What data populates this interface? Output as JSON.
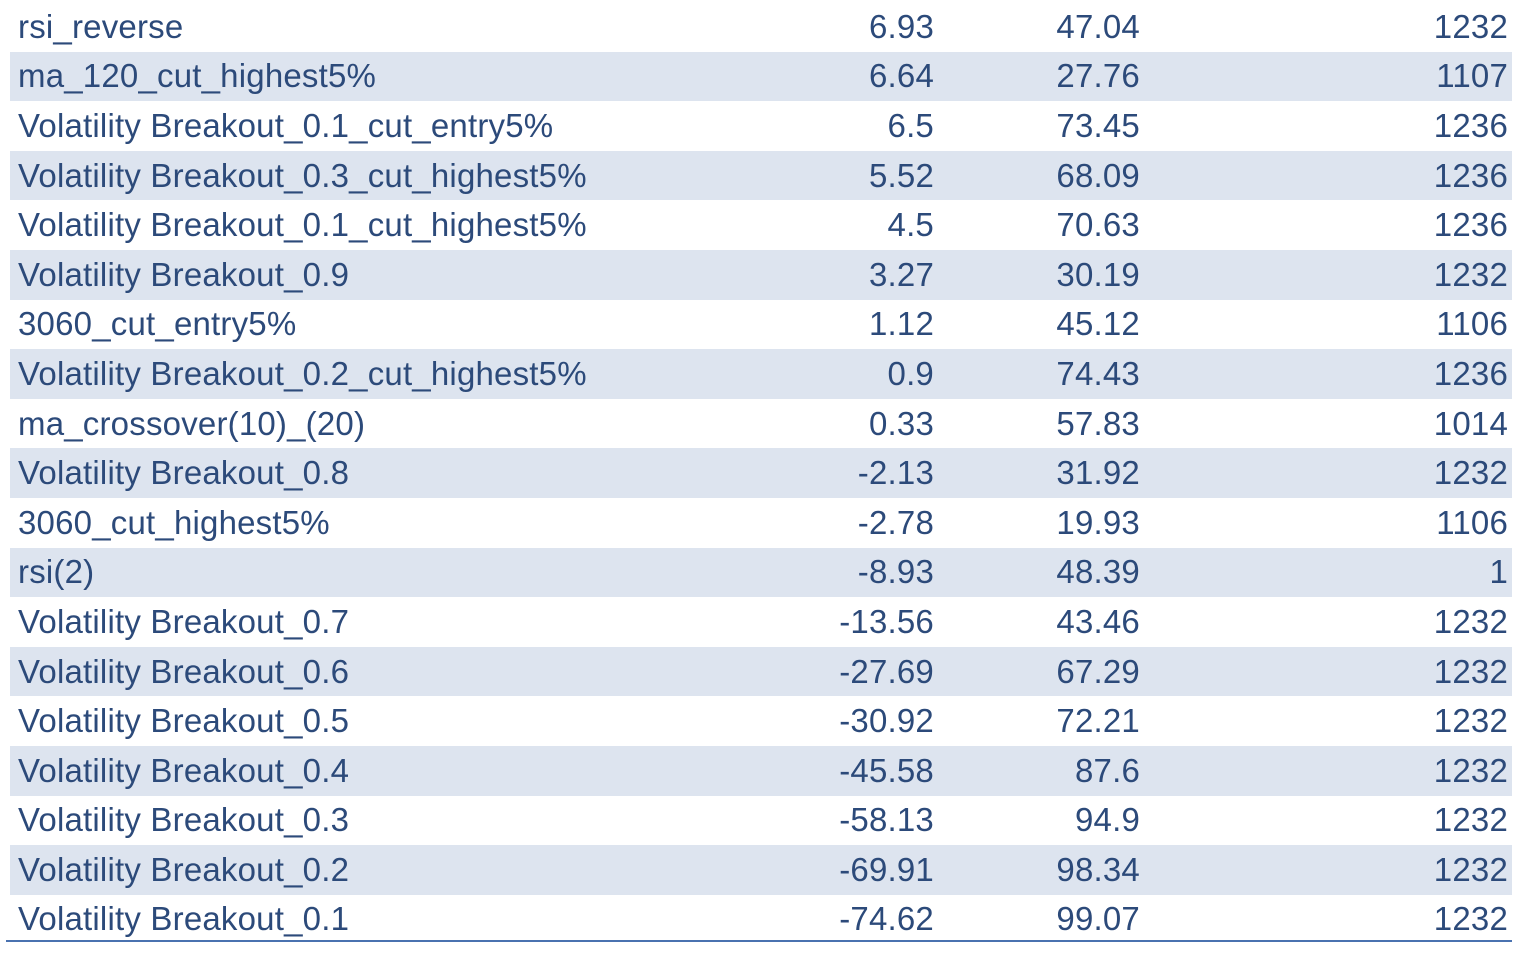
{
  "table": {
    "rows": [
      {
        "name": "rsi_reverse",
        "v1": "6.93",
        "v2": "47.04",
        "v3": "1232"
      },
      {
        "name": "ma_120_cut_highest5%",
        "v1": "6.64",
        "v2": "27.76",
        "v3": "1107"
      },
      {
        "name": "Volatility Breakout_0.1_cut_entry5%",
        "v1": "6.5",
        "v2": "73.45",
        "v3": "1236"
      },
      {
        "name": "Volatility Breakout_0.3_cut_highest5%",
        "v1": "5.52",
        "v2": "68.09",
        "v3": "1236"
      },
      {
        "name": "Volatility Breakout_0.1_cut_highest5%",
        "v1": "4.5",
        "v2": "70.63",
        "v3": "1236"
      },
      {
        "name": "Volatility Breakout_0.9",
        "v1": "3.27",
        "v2": "30.19",
        "v3": "1232"
      },
      {
        "name": "3060_cut_entry5%",
        "v1": "1.12",
        "v2": "45.12",
        "v3": "1106"
      },
      {
        "name": "Volatility Breakout_0.2_cut_highest5%",
        "v1": "0.9",
        "v2": "74.43",
        "v3": "1236"
      },
      {
        "name": "ma_crossover(10)_(20)",
        "v1": "0.33",
        "v2": "57.83",
        "v3": "1014"
      },
      {
        "name": "Volatility Breakout_0.8",
        "v1": "-2.13",
        "v2": "31.92",
        "v3": "1232"
      },
      {
        "name": "3060_cut_highest5%",
        "v1": "-2.78",
        "v2": "19.93",
        "v3": "1106"
      },
      {
        "name": "rsi(2)",
        "v1": "-8.93",
        "v2": "48.39",
        "v3": "1"
      },
      {
        "name": "Volatility Breakout_0.7",
        "v1": "-13.56",
        "v2": "43.46",
        "v3": "1232"
      },
      {
        "name": "Volatility Breakout_0.6",
        "v1": "-27.69",
        "v2": "67.29",
        "v3": "1232"
      },
      {
        "name": "Volatility Breakout_0.5",
        "v1": "-30.92",
        "v2": "72.21",
        "v3": "1232"
      },
      {
        "name": "Volatility Breakout_0.4",
        "v1": "-45.58",
        "v2": "87.6",
        "v3": "1232"
      },
      {
        "name": "Volatility Breakout_0.3",
        "v1": "-58.13",
        "v2": "94.9",
        "v3": "1232"
      },
      {
        "name": "Volatility Breakout_0.2",
        "v1": "-69.91",
        "v2": "98.34",
        "v3": "1232"
      },
      {
        "name": "Volatility Breakout_0.1",
        "v1": "-74.62",
        "v2": "99.07",
        "v3": "1232"
      }
    ]
  },
  "colors": {
    "text": "#2c4a7a",
    "row_shade": "#dde4ef",
    "rule": "#4a72b0"
  }
}
